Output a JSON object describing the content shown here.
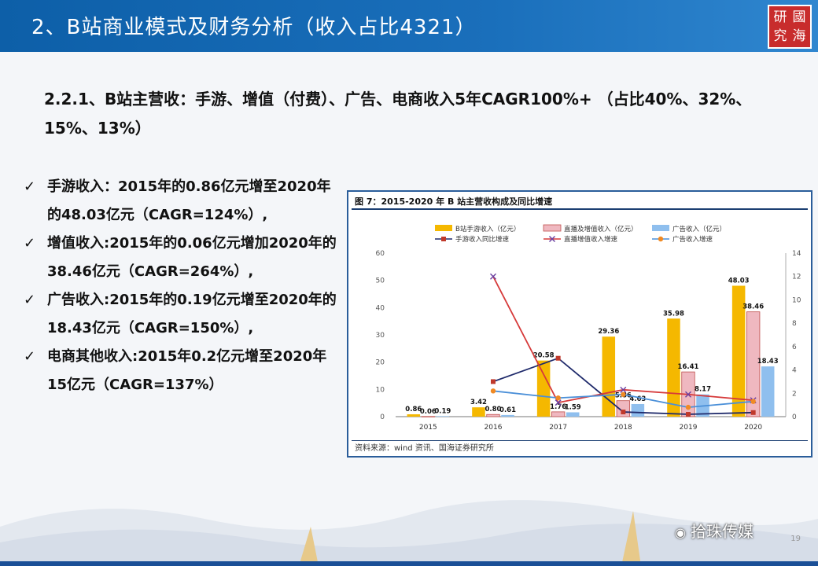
{
  "header": {
    "title": "2、B站商业模式及财务分析（收入占比4321）",
    "logo_text": [
      "研",
      "國",
      "究",
      "海"
    ]
  },
  "subtitle": "2.2.1、B站主营收：手游、增值（付费）、广告、电商收入5年CAGR100%+ （占比40%、32%、15%、13%）",
  "bullets": [
    {
      "check": "✓",
      "text": "手游收入：2015年的0.86亿元增至2020年的48.03亿元（CAGR=124%）,"
    },
    {
      "check": "✓",
      "text": "增值收入:2015年的0.06亿元增加2020年的38.46亿元（CAGR=264%）,"
    },
    {
      "check": "✓",
      "text": "广告收入:2015年的0.19亿元增至2020年的18.43亿元（CAGR=150%）,"
    },
    {
      "check": "✓",
      "text": "电商其他收入:2015年0.2亿元增至2020年15亿元（CAGR=137%）"
    }
  ],
  "chart_box": {
    "title": "图 7：2015-2020 年 B 站主营收构成及同比增速",
    "source": "资料来源：wind 资讯、国海证券研究所"
  },
  "chart_data": {
    "type": "bar",
    "categories": [
      "2015",
      "2016",
      "2017",
      "2018",
      "2019",
      "2020"
    ],
    "ylim": [
      0,
      60
    ],
    "yticks": [
      0,
      10,
      20,
      30,
      40,
      50,
      60
    ],
    "y2lim": [
      0,
      14
    ],
    "y2ticks": [
      0,
      2,
      4,
      6,
      8,
      10,
      12,
      14
    ],
    "series": [
      {
        "name": "B站手游收入（亿元）",
        "kind": "bar",
        "color": "#f5b800",
        "values": [
          0.86,
          3.42,
          20.58,
          29.36,
          35.98,
          48.03
        ],
        "labels": [
          "0.86",
          "3.42",
          "20.58",
          "29.36",
          "35.98",
          "48.03"
        ]
      },
      {
        "name": "直播及增值收入（亿元）",
        "kind": "bar",
        "color": "#efb8c0",
        "stroke": "#c0504d",
        "values": [
          0.06,
          0.8,
          1.76,
          5.86,
          16.41,
          38.46
        ],
        "labels": [
          "0.06",
          "0.80",
          "1.76",
          "5.86",
          "16.41",
          "38.46"
        ]
      },
      {
        "name": "广告收入（亿元）",
        "kind": "bar",
        "color": "#8fbfee",
        "values": [
          0.19,
          0.61,
          1.59,
          4.63,
          8.17,
          18.43
        ],
        "labels": [
          "0.19",
          "0.61",
          "1.59",
          "4.63",
          "8.17",
          "18.43"
        ]
      },
      {
        "name": "手游收入同比增速",
        "kind": "line",
        "axis": "right",
        "color": "#1f2a6b",
        "marker": "square",
        "marker_color": "#c0392b",
        "values": [
          null,
          3.0,
          5.0,
          0.4,
          0.2,
          0.35
        ]
      },
      {
        "name": "直播增值收入增速",
        "kind": "line",
        "axis": "right",
        "color": "#d63a3a",
        "marker": "x",
        "marker_color": "#6a3fa0",
        "values": [
          null,
          12.0,
          1.2,
          2.3,
          1.9,
          1.4
        ]
      },
      {
        "name": "广告收入增速",
        "kind": "line",
        "axis": "right",
        "color": "#4a8fd8",
        "marker": "circle",
        "marker_color": "#f08a24",
        "values": [
          null,
          2.2,
          1.6,
          1.9,
          0.8,
          1.3
        ]
      }
    ]
  },
  "watermark": {
    "icon": "wechat-icon",
    "text": "拾珠传媒"
  },
  "page_number": "19"
}
